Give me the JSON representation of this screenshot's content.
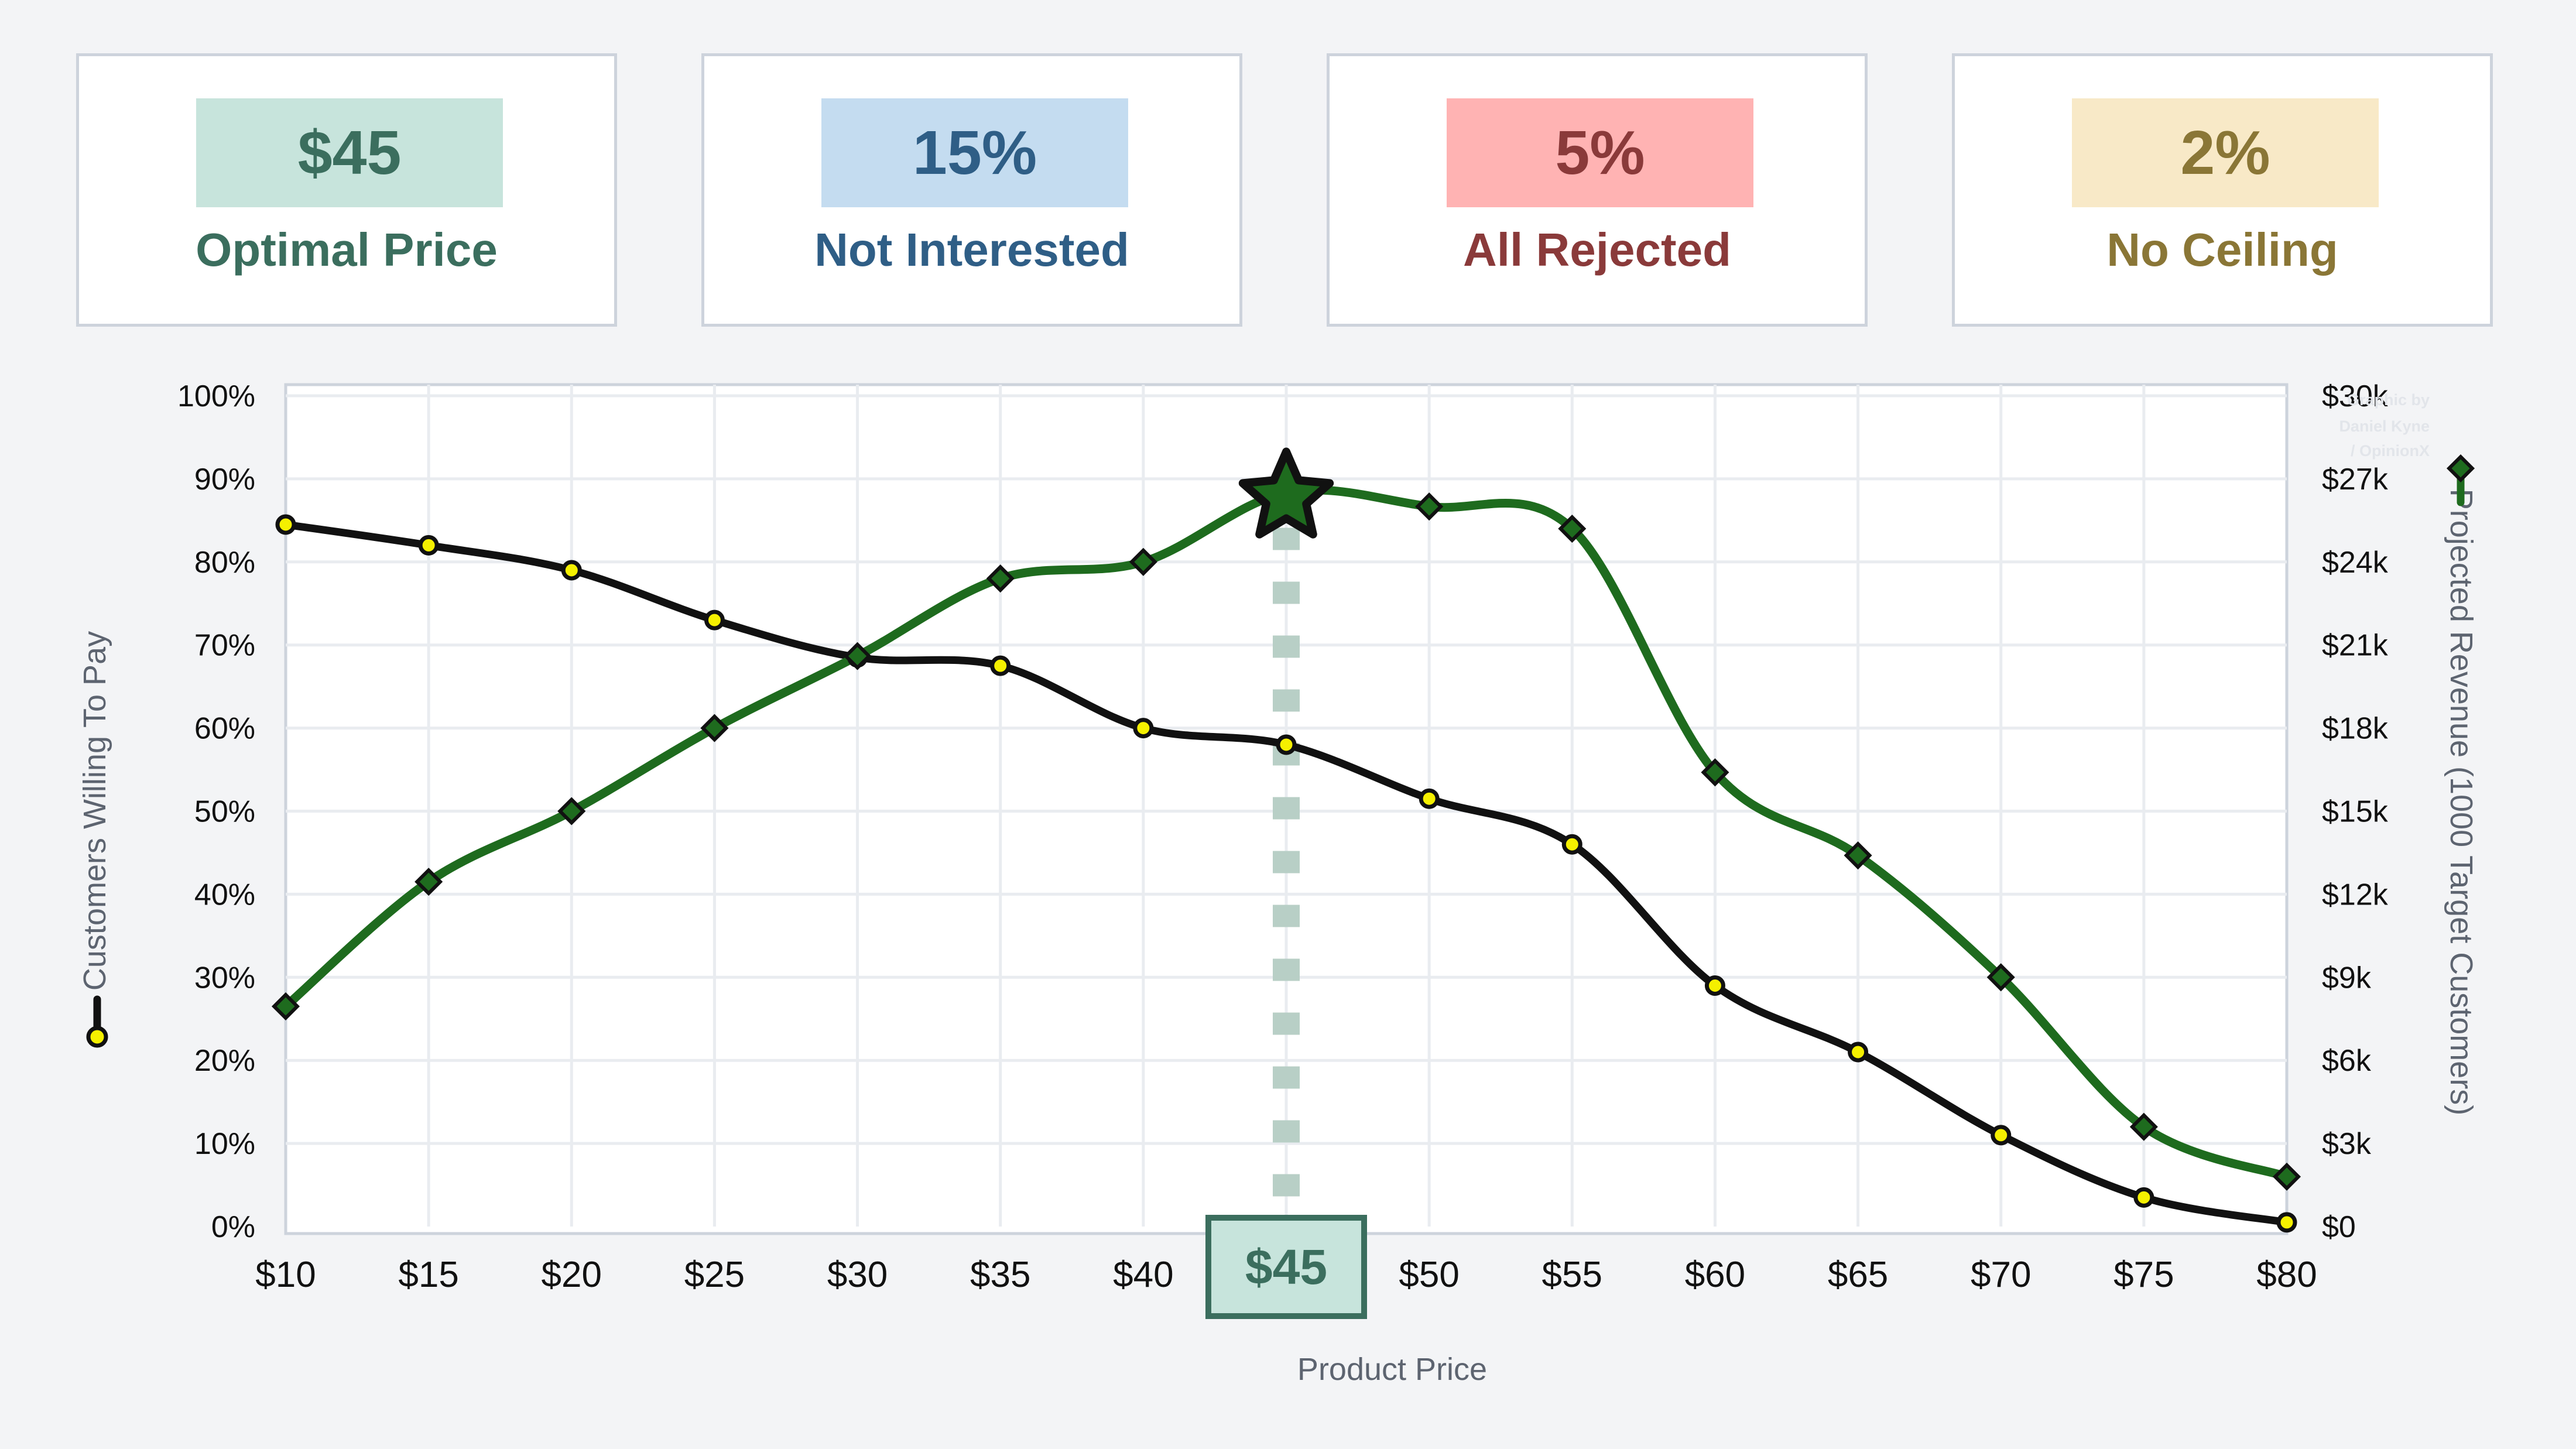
{
  "kpis": [
    {
      "value": "$45",
      "label": "Optimal Price",
      "box_color": "#c7e4dc",
      "text_color": "#3b6e5e"
    },
    {
      "value": "15%",
      "label": "Not Interested",
      "box_color": "#c4dcf0",
      "text_color": "#2f5e86"
    },
    {
      "value": "5%",
      "label": "All Rejected",
      "box_color": "#ffb3b3",
      "text_color": "#8a3a3a"
    },
    {
      "value": "2%",
      "label": "No Ceiling",
      "box_color": "#f8e9c7",
      "text_color": "#8a7636"
    }
  ],
  "chart_data": {
    "type": "line",
    "x": [
      10,
      15,
      20,
      25,
      30,
      35,
      40,
      45,
      50,
      55,
      60,
      65,
      70,
      75,
      80
    ],
    "x_tick_labels": [
      "$10",
      "$15",
      "$20",
      "$25",
      "$30",
      "$35",
      "$40",
      "$45",
      "$50",
      "$55",
      "$60",
      "$65",
      "$70",
      "$75",
      "$80"
    ],
    "xlabel": "Product Price",
    "ylabel_left": "Customers Willing To Pay",
    "ylabel_right": "Projected Revenue (1000 Target Customers)",
    "ylim_left": [
      0,
      100
    ],
    "ylim_right": [
      0,
      30000
    ],
    "left_ticks": [
      "0%",
      "10%",
      "20%",
      "30%",
      "40%",
      "50%",
      "60%",
      "70%",
      "80%",
      "90%",
      "100%"
    ],
    "right_ticks": [
      "$0",
      "$3k",
      "$6k",
      "$9k",
      "$12k",
      "$15k",
      "$18k",
      "$21k",
      "$24k",
      "$27k",
      "$30k"
    ],
    "grid": true,
    "series": [
      {
        "axis": "left",
        "color": "#111111",
        "values": [
          84.5,
          82,
          79,
          73,
          68.5,
          67.5,
          60,
          58,
          51.5,
          46,
          29,
          21,
          11,
          3.5,
          0.5
        ]
      },
      {
        "axis": "right",
        "color": "#1e6b1e",
        "values": [
          7950,
          12450,
          15000,
          18000,
          20600,
          23400,
          24000,
          26500,
          26000,
          25200,
          16400,
          13400,
          9000,
          3600,
          1800
        ]
      }
    ],
    "optimal": {
      "x": 45,
      "label": "$45"
    },
    "annotation": [
      "Graphic by",
      "Daniel Kyne",
      "/ OpinionX"
    ]
  }
}
